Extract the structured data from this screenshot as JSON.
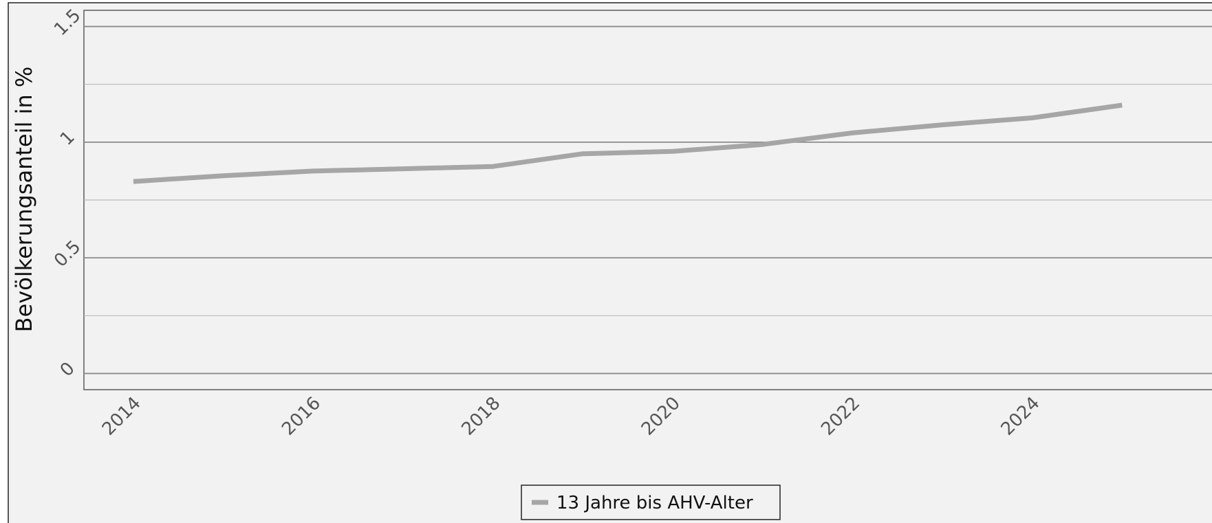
{
  "chart_data": {
    "type": "line",
    "title": "",
    "xlabel": "",
    "ylabel": "Bevölkerungsanteil in %",
    "xlim": [
      2013.45,
      2026
    ],
    "ylim": [
      -0.07,
      1.57
    ],
    "x_ticks": [
      2014,
      2016,
      2018,
      2020,
      2022,
      2024
    ],
    "x_tick_labels": [
      "2014",
      "2016",
      "2018",
      "2020",
      "2022",
      "2024"
    ],
    "y_ticks": [
      0,
      0.5,
      1,
      1.5
    ],
    "y_tick_labels": [
      "0",
      "0.5",
      "1",
      "1.5"
    ],
    "y_minor_ticks": [
      0.25,
      0.75,
      1.25
    ],
    "grid": true,
    "legend_position": "bottom-center",
    "x": [
      2014,
      2015,
      2016,
      2017,
      2018,
      2019,
      2020,
      2021,
      2022,
      2023,
      2024,
      2025
    ],
    "series": [
      {
        "name": "13 Jahre bis AHV-Alter",
        "color": "#a6a6a6",
        "values": [
          0.83,
          0.855,
          0.875,
          0.885,
          0.895,
          0.95,
          0.96,
          0.99,
          1.04,
          1.075,
          1.105,
          1.16
        ]
      }
    ],
    "colors": {
      "background": "#f2f2f2",
      "plot_frame": "#5a5a5a",
      "major_grid": "#8a8a8a",
      "minor_grid": "#b8b8b8"
    }
  }
}
